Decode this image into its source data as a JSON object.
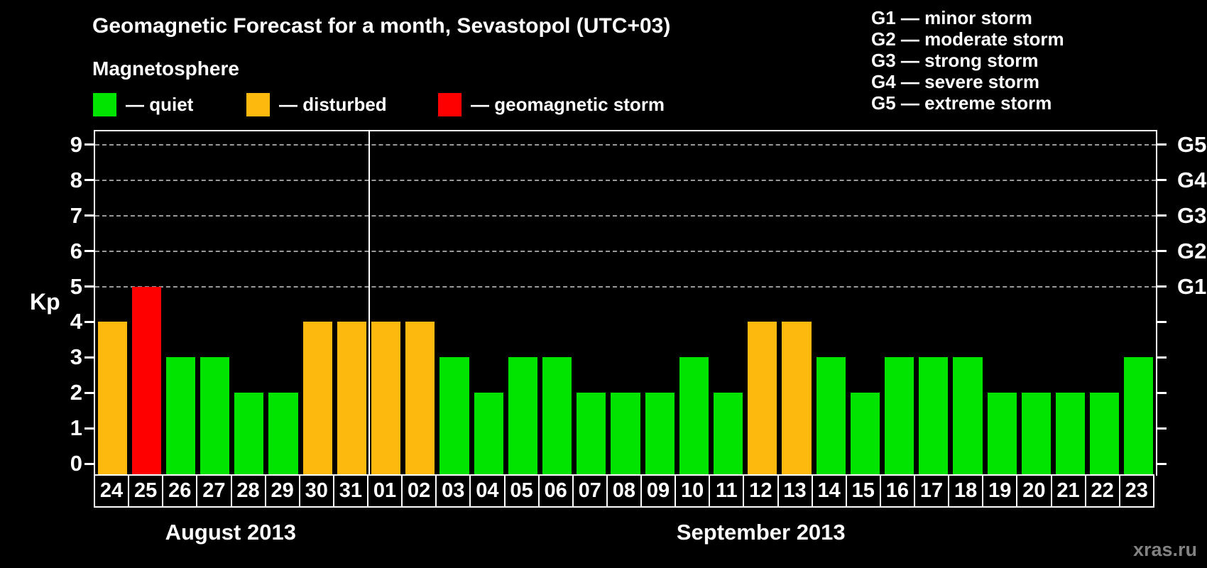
{
  "title": "Geomagnetic Forecast for a month, Sevastopol (UTC+03)",
  "subtitle": "Magnetosphere",
  "legend": {
    "items": [
      {
        "key": "quiet",
        "label": "— quiet",
        "color": "#00e400"
      },
      {
        "key": "disturbed",
        "label": "— disturbed",
        "color": "#fdb90d"
      },
      {
        "key": "storm",
        "label": "— geomagnetic storm",
        "color": "#ff0000"
      }
    ]
  },
  "storm_scale": [
    "G1 — minor storm",
    "G2 — moderate storm",
    "G3 — strong storm",
    "G4 — severe storm",
    "G5 — extreme storm"
  ],
  "watermark": "xras.ru",
  "chart_data": {
    "type": "bar",
    "title": "Geomagnetic Forecast for a month, Sevastopol (UTC+03)",
    "ylabel": "Kp",
    "ylim": [
      0,
      9.4
    ],
    "grid": "dashed horizontal at Kp 5-9 only",
    "legend_position": "top",
    "yticks": [
      0,
      1,
      2,
      3,
      4,
      5,
      6,
      7,
      8,
      9
    ],
    "gridlines_at": [
      5,
      6,
      7,
      8,
      9
    ],
    "right_axis_labels": [
      {
        "label": "G1",
        "level": 5
      },
      {
        "label": "G2",
        "level": 6
      },
      {
        "label": "G3",
        "level": 7
      },
      {
        "label": "G4",
        "level": 8
      },
      {
        "label": "G5",
        "level": 9
      }
    ],
    "colors": {
      "quiet": "#00e400",
      "disturbed": "#fdb90d",
      "storm": "#ff0000"
    },
    "months": [
      {
        "name": "August 2013",
        "days": 8
      },
      {
        "name": "September 2013",
        "days": 23
      }
    ],
    "categories": [
      "24",
      "25",
      "26",
      "27",
      "28",
      "29",
      "30",
      "31",
      "01",
      "02",
      "03",
      "04",
      "05",
      "06",
      "07",
      "08",
      "09",
      "10",
      "11",
      "12",
      "13",
      "14",
      "15",
      "16",
      "17",
      "18",
      "19",
      "20",
      "21",
      "22",
      "23"
    ],
    "values": [
      4,
      5,
      3,
      3,
      2,
      2,
      4,
      4,
      4,
      4,
      3,
      2,
      3,
      3,
      2,
      2,
      2,
      3,
      2,
      4,
      4,
      3,
      2,
      3,
      3,
      3,
      2,
      2,
      2,
      2,
      3
    ],
    "status": [
      "disturbed",
      "storm",
      "quiet",
      "quiet",
      "quiet",
      "quiet",
      "disturbed",
      "disturbed",
      "disturbed",
      "disturbed",
      "quiet",
      "quiet",
      "quiet",
      "quiet",
      "quiet",
      "quiet",
      "quiet",
      "quiet",
      "quiet",
      "disturbed",
      "disturbed",
      "quiet",
      "quiet",
      "quiet",
      "quiet",
      "quiet",
      "quiet",
      "quiet",
      "quiet",
      "quiet",
      "quiet"
    ]
  }
}
